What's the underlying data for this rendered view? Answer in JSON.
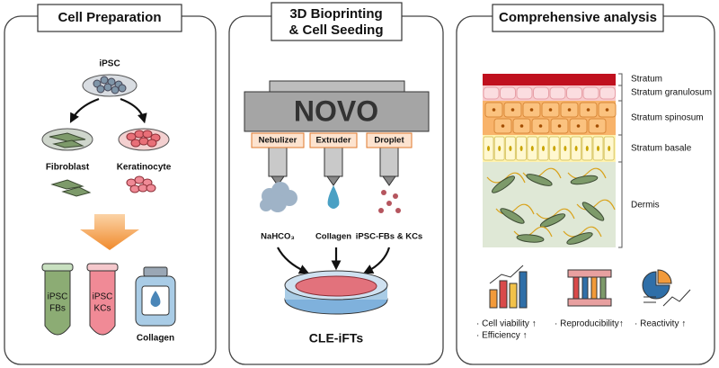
{
  "panels": [
    {
      "title": "Cell Preparation",
      "source": "iPSC",
      "cells": [
        "Fibroblast",
        "Keratinocyte"
      ],
      "tubes": [
        [
          "iPSC",
          "FBs"
        ],
        [
          "iPSC",
          "KCs"
        ]
      ],
      "bottle": "Collagen"
    },
    {
      "title": [
        "3D Bioprinting",
        "& Cell Seeding"
      ],
      "printer": "NOVO",
      "heads": [
        {
          "name": "Nebulizer",
          "material": "NaHCO₃"
        },
        {
          "name": "Extruder",
          "material": "Collagen"
        },
        {
          "name": "Droplet",
          "material": "iPSC-FBs & KCs"
        }
      ],
      "product": "CLE-iFTs"
    },
    {
      "title": "Comprehensive analysis",
      "layers": [
        "Stratum",
        "Stratum granulosum",
        "Stratum spinosum",
        "Stratum basale",
        "Dermis"
      ],
      "outcomes": [
        [
          "· Cell viability ↑",
          "· Efficiency ↑"
        ],
        [
          "· Reproducibility↑"
        ],
        [
          "· Reactivity ↑"
        ]
      ]
    }
  ]
}
